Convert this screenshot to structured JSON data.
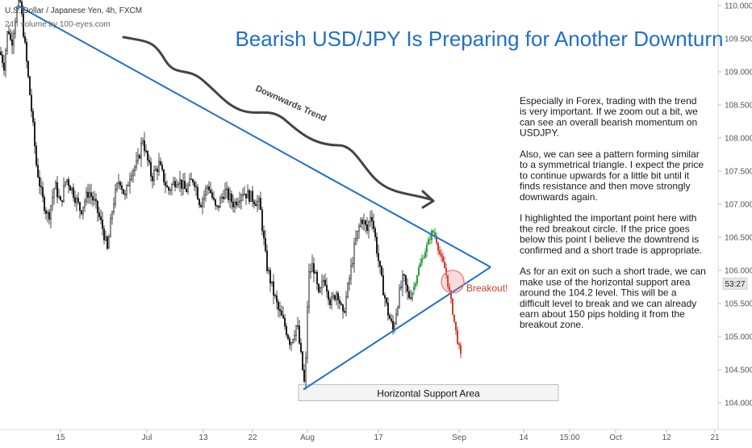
{
  "header": {
    "symbol": "U.S. Dollar / Japanese Yen, 4h, FXCM",
    "volume": "24h volume by 100-eyes.com"
  },
  "title": "Bearish USD/JPY Is Preparing for Another Downturn",
  "description": [
    "Especially in Forex, trading with the trend",
    "is very important. If we zoom out a bit, we",
    "can see an overall bearish momentum on",
    "USDJPY.",
    "",
    "Also, we can see a pattern forming similar",
    "to a symmetrical triangle. I expect the price",
    "to continue upwards for a little bit until it",
    "finds resistance and then move strongly",
    "downwards again.",
    "",
    "I highlighted the important point here with",
    "the red breakout circle. If the price goes",
    "below this point I believe the downtrend is",
    "confirmed and a short trade is appropriate.",
    "",
    "As for an exit on such a short trade, we can",
    "make use of the horizontal support area",
    "around the 104.2 level. This will be a",
    "difficult level to break and we can already",
    "earn about 150 pips holding it from the",
    "breakout zone."
  ],
  "annotations": {
    "trend": "Downwards Trend",
    "breakout": "Breakout!",
    "support": "Horizontal Support Area"
  },
  "countdown": "53:27",
  "colors": {
    "title": "#1e6fce",
    "trendline": "#1e6fce",
    "candle": "#1a1a1a",
    "projection_up": "#2e9e3e",
    "projection_down": "#d43a2c",
    "breakout_circle": "#e8736a"
  },
  "chart_data": {
    "type": "candlestick",
    "y_axis": {
      "position": "right",
      "ylim": [
        103.65,
        110.1
      ],
      "ticks": [
        "110.000",
        "109.500",
        "109.000",
        "108.500",
        "108.000",
        "107.500",
        "107.000",
        "106.500",
        "106.000",
        "105.500",
        "105.000",
        "104.500",
        "104.000"
      ]
    },
    "x_axis": {
      "ticks": [
        "15",
        "Jul",
        "13",
        "22",
        "Aug",
        "17",
        "Sep",
        "14",
        "15:00",
        "Oct",
        "12",
        "21"
      ]
    },
    "price_path": [
      [
        0,
        109.3
      ],
      [
        5,
        109.1
      ],
      [
        10,
        109.7
      ],
      [
        14,
        109.4
      ],
      [
        20,
        109.9
      ],
      [
        25,
        110.05
      ],
      [
        30,
        109.5
      ],
      [
        35,
        108.9
      ],
      [
        40,
        108.3
      ],
      [
        45,
        107.6
      ],
      [
        52,
        107.1
      ],
      [
        60,
        106.8
      ],
      [
        68,
        107.3
      ],
      [
        75,
        107.0
      ],
      [
        82,
        107.4
      ],
      [
        90,
        107.2
      ],
      [
        100,
        106.9
      ],
      [
        110,
        107.2
      ],
      [
        118,
        107.0
      ],
      [
        128,
        106.6
      ],
      [
        133,
        106.3
      ],
      [
        140,
        107.0
      ],
      [
        148,
        107.4
      ],
      [
        155,
        107.1
      ],
      [
        162,
        107.5
      ],
      [
        170,
        107.6
      ],
      [
        177,
        108.0
      ],
      [
        180,
        107.8
      ],
      [
        188,
        107.4
      ],
      [
        197,
        107.6
      ],
      [
        208,
        107.2
      ],
      [
        220,
        107.4
      ],
      [
        230,
        107.2
      ],
      [
        240,
        107.4
      ],
      [
        248,
        107.0
      ],
      [
        258,
        107.3
      ],
      [
        268,
        106.9
      ],
      [
        278,
        107.2
      ],
      [
        290,
        107.0
      ],
      [
        300,
        107.2
      ],
      [
        312,
        107.1
      ],
      [
        322,
        107.0
      ],
      [
        330,
        106.1
      ],
      [
        338,
        105.7
      ],
      [
        345,
        105.4
      ],
      [
        352,
        105.2
      ],
      [
        360,
        104.9
      ],
      [
        368,
        105.2
      ],
      [
        374,
        104.6
      ],
      [
        378,
        104.2
      ],
      [
        382,
        105.9
      ],
      [
        388,
        106.1
      ],
      [
        395,
        105.6
      ],
      [
        402,
        105.9
      ],
      [
        410,
        105.5
      ],
      [
        418,
        105.7
      ],
      [
        425,
        105.3
      ],
      [
        432,
        105.8
      ],
      [
        440,
        106.4
      ],
      [
        448,
        106.8
      ],
      [
        455,
        106.6
      ],
      [
        460,
        106.9
      ],
      [
        466,
        106.4
      ],
      [
        472,
        105.9
      ],
      [
        480,
        105.4
      ],
      [
        487,
        105.1
      ],
      [
        494,
        105.6
      ],
      [
        500,
        105.9
      ],
      [
        506,
        105.6
      ],
      [
        512,
        105.7
      ]
    ],
    "projection": [
      [
        512,
        105.7
      ],
      [
        518,
        106.0
      ],
      [
        524,
        106.2
      ],
      [
        530,
        106.4
      ],
      [
        536,
        106.6
      ],
      [
        540,
        106.5
      ],
      [
        546,
        106.2
      ],
      [
        552,
        106.0
      ],
      [
        558,
        105.6
      ],
      [
        562,
        105.3
      ],
      [
        566,
        105.0
      ],
      [
        571,
        104.7
      ]
    ],
    "trendlines": [
      [
        [
          22,
          110.0
        ],
        [
          608,
          106.05
        ]
      ],
      [
        [
          376,
          104.2
        ],
        [
          608,
          106.05
        ]
      ]
    ],
    "support_zone": {
      "y_low": 104.03,
      "y_high": 104.3,
      "x_start": 370,
      "x_end": 692
    },
    "breakout_point": {
      "x": 561,
      "y": 105.83
    },
    "price_badge": {
      "value": "53:27",
      "y": 105.8
    }
  }
}
